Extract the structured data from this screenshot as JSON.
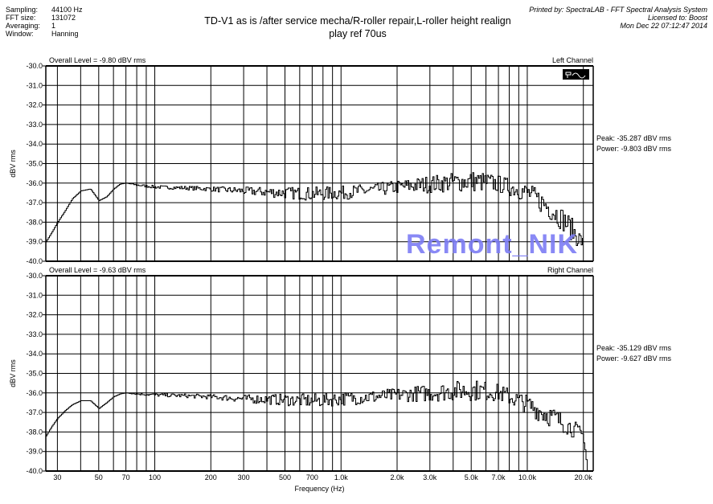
{
  "info": {
    "rows": [
      {
        "label": "Sampling:",
        "value": "44100 Hz"
      },
      {
        "label": "FFT size:",
        "value": "131072"
      },
      {
        "label": "Averaging:",
        "value": "1"
      },
      {
        "label": "Window:",
        "value": "Hanning"
      }
    ]
  },
  "title_line1": "TD-V1 as is /after service mecha/R-roller repair,L-roller height realign",
  "title_line2": "play ref 70us",
  "printed": {
    "line1": "Printed by: SpectraLAB - FFT Spectral Analysis System",
    "line2": "Licensed to: Boost",
    "line3": "Mon Dec 22 07:12:47 2014"
  },
  "watermark": "Remont_NIK",
  "chart_data": [
    {
      "type": "line",
      "title": "Left Channel",
      "overall_level": "Overall Level = -9.80 dBV rms",
      "peak": "Peak: -35.287 dBV rms",
      "power": "Power: -9.803 dBV rms",
      "xlabel": "Frequency (Hz)",
      "ylabel": "dBV rms",
      "xscale": "log",
      "xlim": [
        26,
        22600
      ],
      "ylim": [
        -40,
        -30
      ],
      "yticks": [
        "-30.0",
        "-31.0",
        "-32.0",
        "-33.0",
        "-34.0",
        "-35.0",
        "-36.0",
        "-37.0",
        "-38.0",
        "-39.0",
        "-40.0"
      ],
      "grid": true,
      "x": [
        26,
        28,
        30,
        33,
        36,
        40,
        45,
        50,
        55,
        60,
        65,
        70,
        80,
        100,
        150,
        200,
        300,
        500,
        700,
        1000,
        1500,
        2000,
        3000,
        4000,
        5000,
        6000,
        7000,
        8000,
        10000,
        12000,
        14000,
        16000,
        18000,
        20000
      ],
      "y": [
        -39,
        -38.5,
        -38,
        -37.4,
        -36.8,
        -36.4,
        -36.3,
        -36.9,
        -36.7,
        -36.3,
        -36.05,
        -36,
        -36.1,
        -36.2,
        -36.25,
        -36.3,
        -36.4,
        -36.5,
        -36.55,
        -36.5,
        -36.35,
        -36.2,
        -36.05,
        -35.95,
        -35.9,
        -35.95,
        -36.05,
        -36.2,
        -36.5,
        -37,
        -37.5,
        -38,
        -38.6,
        -39.1
      ],
      "ripple_db": [
        0,
        0,
        0,
        0,
        0,
        0,
        0,
        0,
        0,
        0,
        0,
        0,
        0.05,
        0.08,
        0.1,
        0.12,
        0.2,
        0.3,
        0.35,
        0.35,
        0.35,
        0.35,
        0.45,
        0.5,
        0.55,
        0.5,
        0.45,
        0.45,
        0.5,
        0.6,
        0.6,
        0.6,
        0.6,
        0.3
      ]
    },
    {
      "type": "line",
      "title": "Right Channel",
      "overall_level": "Overall Level = -9.63 dBV rms",
      "peak": "Peak: -35.129 dBV rms",
      "power": "Power: -9.627 dBV rms",
      "xlabel": "Frequency (Hz)",
      "ylabel": "dBV rms",
      "xscale": "log",
      "xlim": [
        26,
        22600
      ],
      "ylim": [
        -40,
        -30
      ],
      "yticks": [
        "-30.0",
        "-31.0",
        "-32.0",
        "-33.0",
        "-34.0",
        "-35.0",
        "-36.0",
        "-37.0",
        "-38.0",
        "-39.0",
        "-40.0"
      ],
      "xticks": [
        "30",
        "50",
        "70",
        "100",
        "200",
        "300",
        "500",
        "700",
        "1.0k",
        "2.0k",
        "3.0k",
        "5.0k",
        "7.0k",
        "10.0k",
        "20.0k"
      ],
      "xtick_values": [
        30,
        50,
        70,
        100,
        200,
        300,
        500,
        700,
        1000,
        2000,
        3000,
        5000,
        7000,
        10000,
        20000
      ],
      "grid": true,
      "x": [
        26,
        28,
        30,
        33,
        36,
        40,
        45,
        50,
        55,
        60,
        65,
        70,
        80,
        100,
        150,
        200,
        300,
        500,
        700,
        1000,
        1500,
        2000,
        3000,
        4000,
        5000,
        6000,
        7000,
        8000,
        10000,
        12000,
        14000,
        16000,
        18000,
        20000,
        21000
      ],
      "y": [
        -38.2,
        -37.7,
        -37.3,
        -36.9,
        -36.6,
        -36.4,
        -36.4,
        -36.8,
        -36.5,
        -36.2,
        -36.05,
        -36,
        -36.05,
        -36.1,
        -36.15,
        -36.2,
        -36.3,
        -36.35,
        -36.4,
        -36.3,
        -36.2,
        -36.1,
        -36,
        -35.9,
        -35.85,
        -35.9,
        -36,
        -36.2,
        -36.6,
        -37,
        -37.3,
        -37.6,
        -37.9,
        -38.2,
        -40
      ],
      "ripple_db": [
        0,
        0,
        0,
        0,
        0,
        0,
        0,
        0,
        0,
        0,
        0,
        0,
        0.05,
        0.08,
        0.1,
        0.12,
        0.2,
        0.3,
        0.35,
        0.35,
        0.35,
        0.35,
        0.45,
        0.5,
        0.55,
        0.5,
        0.45,
        0.45,
        0.5,
        0.55,
        0.55,
        0.5,
        0.45,
        0.3,
        0
      ]
    }
  ],
  "xtick_labels": [
    "30",
    "50",
    "70",
    "100",
    "200",
    "300",
    "500",
    "700",
    "1.0k",
    "2.0k",
    "3.0k",
    "5.0k",
    "7.0k",
    "10.0k",
    "20.0k"
  ]
}
